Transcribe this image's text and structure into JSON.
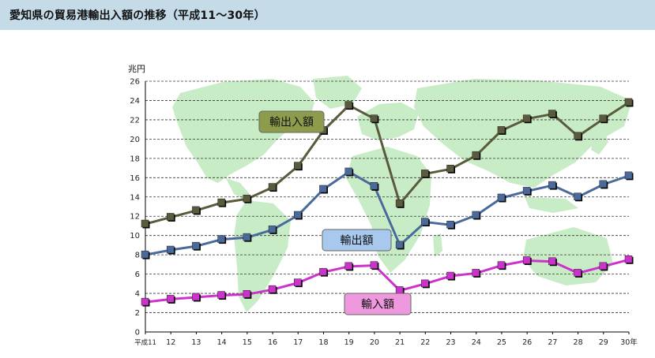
{
  "header": {
    "title": "愛知県の貿易港輸出入額の推移（平成11～30年）"
  },
  "chart_data": {
    "type": "line",
    "title": "愛知県の貿易港輸出入額の推移（平成11～30年）",
    "ylabel": "兆円",
    "xlabel": "",
    "ylim": [
      0,
      26
    ],
    "ytick_step": 2,
    "yticks": [
      "0",
      "2",
      "4",
      "6",
      "8",
      "10",
      "12",
      "14",
      "16",
      "18",
      "20",
      "22",
      "24",
      "26"
    ],
    "categories": [
      "平成11",
      "12",
      "13",
      "14",
      "15",
      "16",
      "17",
      "18",
      "19",
      "20",
      "21",
      "22",
      "23",
      "24",
      "25",
      "26",
      "27",
      "28",
      "29",
      "30年"
    ],
    "grid": true,
    "series": [
      {
        "name": "輸出入額",
        "color": "#5a5a3c",
        "label_bg": "#8c9c4c",
        "values": [
          11.2,
          11.9,
          12.6,
          13.4,
          13.8,
          15.0,
          17.2,
          20.9,
          23.5,
          22.1,
          13.3,
          16.4,
          16.9,
          18.3,
          20.9,
          22.1,
          22.6,
          20.3,
          22.1,
          23.8
        ]
      },
      {
        "name": "輸出額",
        "color": "#4a6a9c",
        "label_bg": "#a8c8ee",
        "values": [
          8.0,
          8.5,
          8.9,
          9.6,
          9.8,
          10.6,
          12.1,
          14.8,
          16.6,
          15.1,
          9.0,
          11.4,
          11.1,
          12.1,
          13.9,
          14.6,
          15.2,
          14.0,
          15.3,
          16.2
        ]
      },
      {
        "name": "輸入額",
        "color": "#cc33cc",
        "label_bg": "#ee99dd",
        "values": [
          3.1,
          3.4,
          3.6,
          3.8,
          3.9,
          4.4,
          5.1,
          6.2,
          6.8,
          6.9,
          4.3,
          5.0,
          5.8,
          6.1,
          6.9,
          7.4,
          7.3,
          6.1,
          6.8,
          7.5
        ]
      }
    ]
  }
}
